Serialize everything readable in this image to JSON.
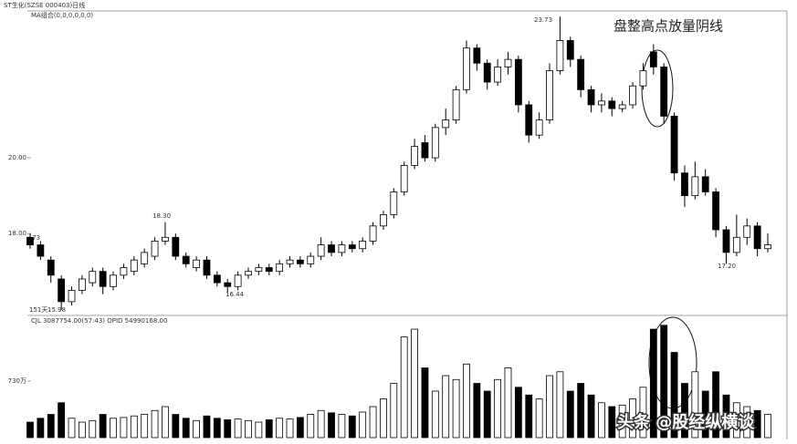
{
  "chart_data": {
    "type": "candlestick",
    "title": "ST生化(SZSE 000403)日线",
    "subtitle": "MA组合(0,0,0,0,0,0)",
    "annotation": "盘整高点放量阴线",
    "price_labels": [
      "18.30",
      "16.44",
      "23.73",
      "17.20",
      "15.98",
      "151天",
      ".73"
    ],
    "ylim": [
      15.86,
      23.88
    ],
    "yticks": [
      {
        "value": 18,
        "label": "18.00"
      },
      {
        "value": 20,
        "label": "20.00"
      }
    ],
    "open": [
      17.9,
      17.7,
      17.3,
      16.8,
      16.2,
      16.5,
      16.7,
      17.0,
      16.6,
      16.9,
      17.0,
      17.2,
      17.4,
      17.8,
      17.9,
      17.4,
      17.1,
      17.3,
      16.9,
      16.7,
      16.6,
      16.9,
      17.0,
      17.1,
      17.0,
      17.2,
      17.3,
      17.2,
      17.4,
      17.7,
      17.5,
      17.7,
      17.6,
      17.8,
      18.2,
      18.5,
      19.1,
      19.8,
      20.4,
      20.0,
      20.8,
      21.0,
      21.8,
      22.9,
      22.5,
      22.0,
      22.4,
      22.6,
      21.4,
      20.6,
      21.0,
      22.3,
      23.1,
      22.6,
      21.8,
      21.4,
      21.5,
      21.3,
      21.4,
      21.9,
      22.8,
      22.4,
      21.1,
      19.6,
      19.0,
      19.5,
      19.1,
      18.1,
      17.5,
      17.9,
      18.2,
      17.6
    ],
    "high": [
      18.0,
      17.8,
      17.4,
      16.9,
      16.6,
      16.9,
      17.1,
      17.1,
      17.0,
      17.2,
      17.4,
      17.6,
      17.9,
      18.3,
      18.0,
      17.5,
      17.4,
      17.4,
      17.0,
      16.8,
      17.0,
      17.1,
      17.2,
      17.2,
      17.3,
      17.4,
      17.4,
      17.5,
      17.9,
      17.8,
      17.8,
      17.8,
      17.9,
      18.3,
      18.6,
      19.2,
      19.9,
      20.5,
      20.6,
      20.9,
      21.3,
      21.9,
      23.1,
      23.0,
      22.6,
      22.6,
      22.8,
      22.7,
      21.5,
      21.2,
      22.5,
      23.73,
      23.2,
      22.7,
      21.9,
      21.7,
      21.6,
      21.5,
      22.0,
      22.5,
      23.0,
      22.5,
      21.2,
      19.8,
      19.9,
      19.7,
      19.2,
      18.2,
      18.5,
      18.4,
      18.3,
      18.0
    ],
    "low": [
      17.6,
      17.3,
      16.7,
      15.98,
      16.1,
      16.4,
      16.6,
      16.4,
      16.5,
      16.8,
      16.9,
      17.1,
      17.3,
      17.7,
      17.3,
      17.1,
      17.0,
      16.8,
      16.6,
      16.44,
      16.5,
      16.8,
      16.9,
      16.9,
      16.9,
      17.1,
      17.1,
      17.1,
      17.3,
      17.4,
      17.4,
      17.5,
      17.5,
      17.7,
      18.1,
      18.4,
      19.0,
      19.7,
      19.9,
      19.9,
      20.6,
      20.9,
      21.7,
      22.3,
      21.8,
      21.9,
      22.2,
      21.2,
      20.4,
      20.5,
      20.9,
      22.2,
      22.4,
      21.6,
      21.2,
      21.2,
      21.1,
      21.2,
      21.3,
      21.8,
      22.2,
      20.9,
      19.4,
      18.7,
      18.9,
      19.0,
      17.9,
      17.2,
      17.4,
      17.7,
      17.4,
      17.5
    ],
    "close": [
      17.7,
      17.4,
      16.9,
      16.2,
      16.5,
      16.8,
      17.0,
      16.6,
      16.9,
      17.1,
      17.3,
      17.5,
      17.8,
      17.9,
      17.4,
      17.2,
      17.3,
      16.9,
      16.7,
      16.6,
      16.9,
      17.0,
      17.1,
      17.0,
      17.2,
      17.3,
      17.2,
      17.4,
      17.7,
      17.5,
      17.7,
      17.6,
      17.8,
      18.2,
      18.5,
      19.1,
      19.8,
      20.3,
      20.0,
      20.8,
      21.0,
      21.8,
      22.9,
      22.5,
      22.0,
      22.4,
      22.6,
      21.4,
      20.6,
      21.0,
      22.3,
      23.1,
      22.6,
      21.8,
      21.4,
      21.5,
      21.3,
      21.4,
      21.9,
      22.3,
      22.4,
      21.1,
      19.6,
      19.0,
      19.5,
      19.1,
      18.1,
      17.5,
      17.9,
      18.2,
      17.6,
      17.7
    ],
    "volume": {
      "title": "CJL  3087754.00(57:43)    OPID  54990168.00",
      "annotation": "头条 @股经纵横谈",
      "ylim": [
        0,
        1530
      ],
      "yticks": [
        {
          "value": 730,
          "label": "730万"
        }
      ],
      "values": [
        200,
        250,
        300,
        450,
        250,
        200,
        220,
        300,
        250,
        260,
        280,
        300,
        350,
        400,
        300,
        250,
        220,
        280,
        250,
        230,
        240,
        220,
        200,
        230,
        250,
        240,
        260,
        300,
        350,
        320,
        300,
        280,
        330,
        400,
        500,
        700,
        1300,
        1400,
        900,
        600,
        800,
        750,
        950,
        700,
        600,
        750,
        900,
        650,
        550,
        500,
        800,
        850,
        600,
        700,
        550,
        450,
        400,
        420,
        500,
        650,
        1400,
        1450,
        1100,
        700,
        850,
        600,
        850,
        550,
        450,
        400,
        350,
        300
      ]
    }
  }
}
